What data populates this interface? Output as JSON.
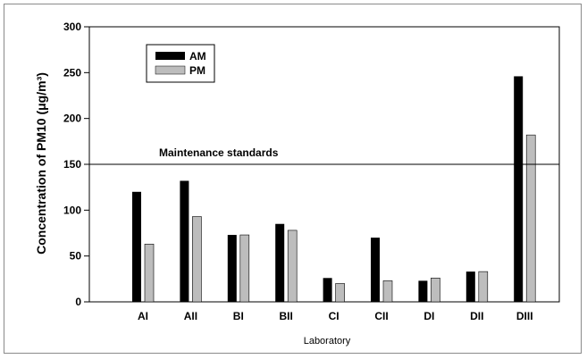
{
  "chart_data": {
    "type": "bar",
    "title": "",
    "xlabel": "Laboratory",
    "ylabel": "Concentration of PM10 (μg/m³)",
    "ylim": [
      0,
      300
    ],
    "yticks": [
      0,
      50,
      100,
      150,
      200,
      250,
      300
    ],
    "categories": [
      "AI",
      "AII",
      "BI",
      "BII",
      "CI",
      "CII",
      "DI",
      "DII",
      "DIII"
    ],
    "series": [
      {
        "name": "AM",
        "color": "#000000",
        "values": [
          120,
          132,
          73,
          85,
          26,
          70,
          23,
          33,
          246
        ]
      },
      {
        "name": "PM",
        "color": "#bdbdbd",
        "values": [
          63,
          93,
          73,
          78,
          20,
          23,
          26,
          33,
          182
        ]
      }
    ],
    "reference_line": {
      "value": 150,
      "label": "Maintenance standards"
    },
    "legend": "top-left",
    "grid": false
  }
}
